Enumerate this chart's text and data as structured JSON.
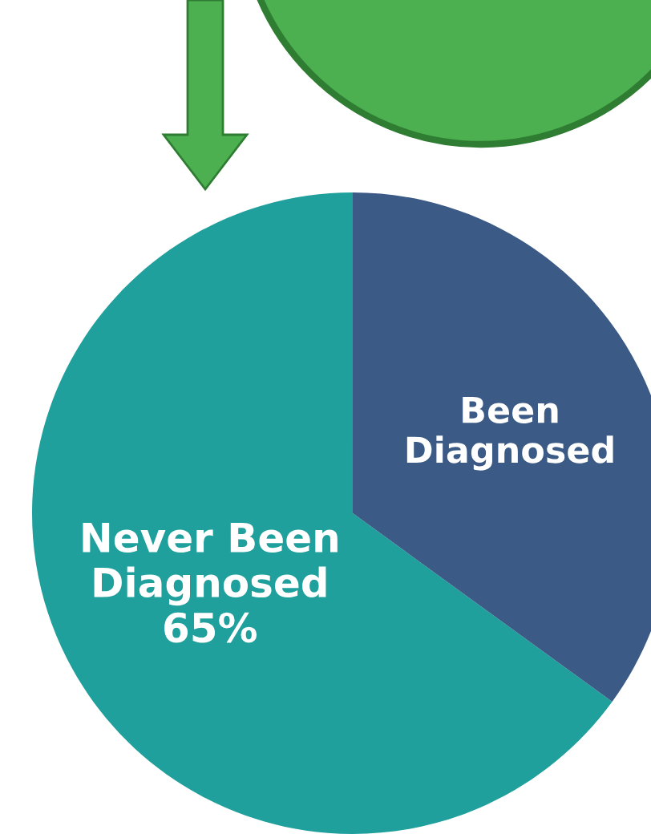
{
  "chart_data": {
    "type": "pie",
    "categories": [
      "Never Been\nDiagnosed",
      "Been\nDiagnosed"
    ],
    "values": [
      65,
      35
    ],
    "colors": [
      "#1fa09c",
      "#3b5a86"
    ],
    "value_labels": [
      "65%",
      null
    ]
  }
}
